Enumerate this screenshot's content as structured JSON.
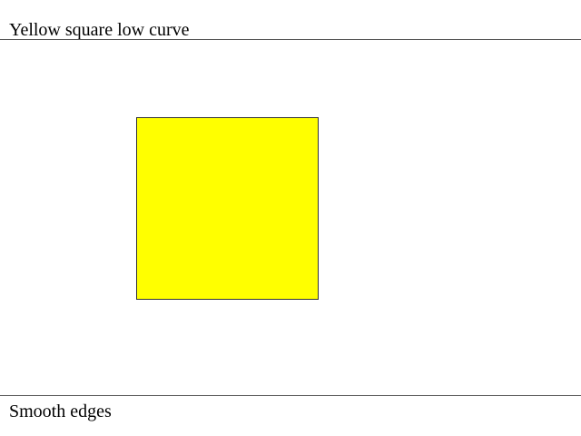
{
  "header": {
    "title": "Yellow square low curve"
  },
  "canvas": {
    "shape": {
      "type": "square",
      "fill_color": "#ffff00",
      "border_color": "#333333"
    }
  },
  "footer": {
    "caption": "Smooth edges"
  }
}
